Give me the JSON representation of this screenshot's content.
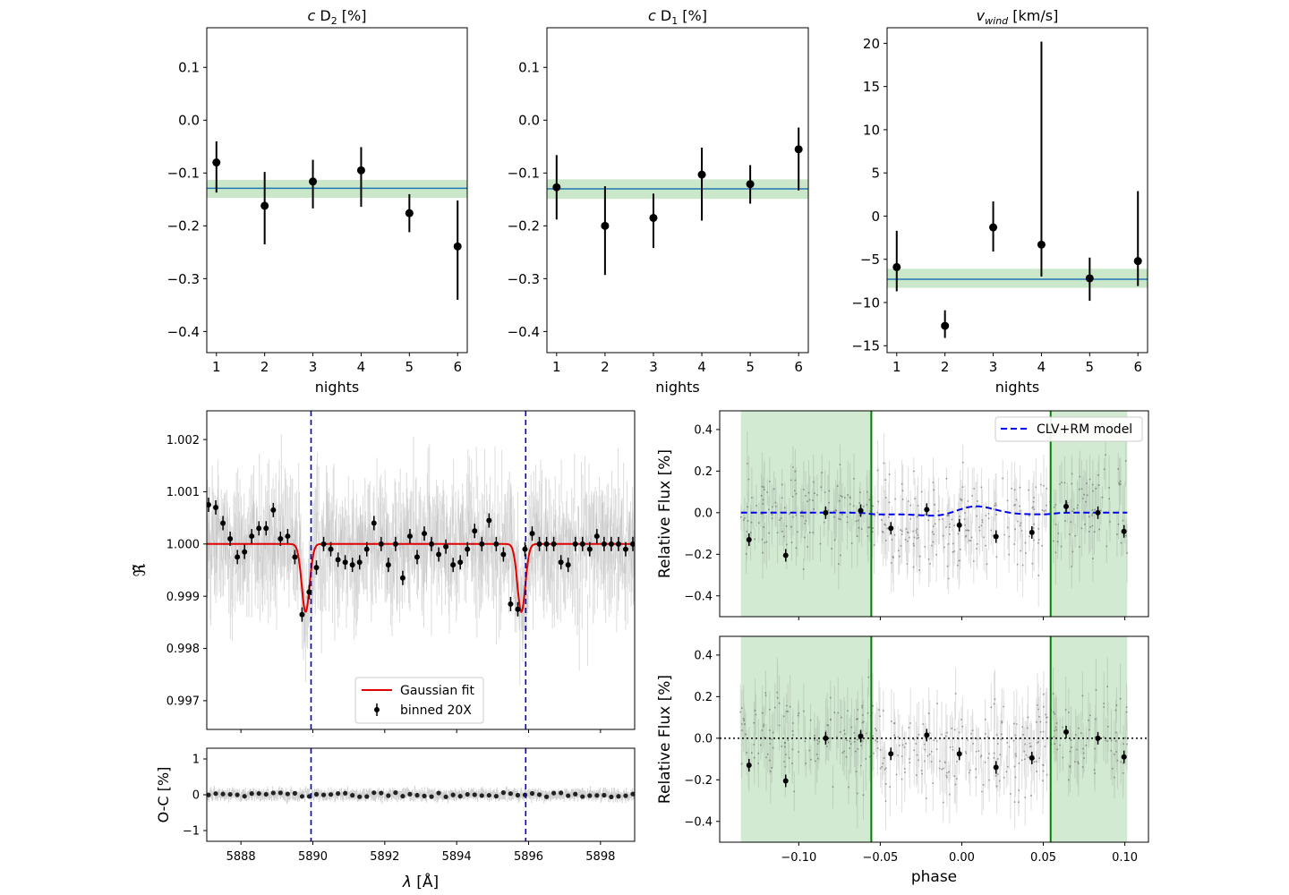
{
  "chart_data": [
    {
      "id": "cD2",
      "type": "scatter",
      "title": {
        "pre": "c",
        "main": " D",
        "sub": "2",
        "post": " [%]"
      },
      "xlabel": "nights",
      "ylabel": "",
      "xlim": [
        0.8,
        6.2
      ],
      "ylim": [
        -0.44,
        0.175
      ],
      "xticks": [
        1,
        2,
        3,
        4,
        5,
        6
      ],
      "xtick_labels": [
        "1",
        "2",
        "3",
        "4",
        "5",
        "6"
      ],
      "yticks": [
        0.1,
        0.0,
        -0.1,
        -0.2,
        -0.3,
        -0.4
      ],
      "ytick_labels": [
        "0.1",
        "0.0",
        "−0.1",
        "−0.2",
        "−0.3",
        "−0.4"
      ],
      "points": [
        {
          "x": 1,
          "y": -0.08,
          "lo": -0.137,
          "hi": -0.04
        },
        {
          "x": 2,
          "y": -0.162,
          "lo": -0.235,
          "hi": -0.098
        },
        {
          "x": 3,
          "y": -0.116,
          "lo": -0.167,
          "hi": -0.075
        },
        {
          "x": 4,
          "y": -0.095,
          "lo": -0.164,
          "hi": -0.051
        },
        {
          "x": 5,
          "y": -0.176,
          "lo": -0.212,
          "hi": -0.14
        },
        {
          "x": 6,
          "y": -0.239,
          "lo": -0.34,
          "hi": -0.152
        }
      ],
      "mean": -0.129,
      "band": [
        -0.147,
        -0.113
      ]
    },
    {
      "id": "cD1",
      "type": "scatter",
      "title": {
        "pre": "c",
        "main": " D",
        "sub": "1",
        "post": " [%]"
      },
      "xlabel": "nights",
      "ylabel": "",
      "xlim": [
        0.8,
        6.2
      ],
      "ylim": [
        -0.44,
        0.175
      ],
      "xticks": [
        1,
        2,
        3,
        4,
        5,
        6
      ],
      "xtick_labels": [
        "1",
        "2",
        "3",
        "4",
        "5",
        "6"
      ],
      "yticks": [
        0.1,
        0.0,
        -0.1,
        -0.2,
        -0.3,
        -0.4
      ],
      "ytick_labels": [
        "0.1",
        "0.0",
        "−0.1",
        "−0.2",
        "−0.3",
        "−0.4"
      ],
      "points": [
        {
          "x": 1,
          "y": -0.127,
          "lo": -0.188,
          "hi": -0.066
        },
        {
          "x": 2,
          "y": -0.2,
          "lo": -0.293,
          "hi": -0.125
        },
        {
          "x": 3,
          "y": -0.185,
          "lo": -0.242,
          "hi": -0.139
        },
        {
          "x": 4,
          "y": -0.103,
          "lo": -0.19,
          "hi": -0.052
        },
        {
          "x": 5,
          "y": -0.121,
          "lo": -0.158,
          "hi": -0.085
        },
        {
          "x": 6,
          "y": -0.055,
          "lo": -0.133,
          "hi": -0.014
        }
      ],
      "mean": -0.13,
      "band": [
        -0.149,
        -0.112
      ]
    },
    {
      "id": "vwind",
      "type": "scatter",
      "title": {
        "pre": "v",
        "main": "",
        "sub": "wind",
        "post": " [km/s]"
      },
      "xlabel": "nights",
      "ylabel": "",
      "xlim": [
        0.8,
        6.2
      ],
      "ylim": [
        -15.8,
        21.8
      ],
      "xticks": [
        1,
        2,
        3,
        4,
        5,
        6
      ],
      "xtick_labels": [
        "1",
        "2",
        "3",
        "4",
        "5",
        "6"
      ],
      "yticks": [
        20,
        15,
        10,
        5,
        0,
        -5,
        -10,
        -15
      ],
      "ytick_labels": [
        "20",
        "15",
        "10",
        "5",
        "0",
        "−5",
        "−10",
        "−15"
      ],
      "points": [
        {
          "x": 1,
          "y": -5.9,
          "lo": -8.7,
          "hi": -1.7
        },
        {
          "x": 2,
          "y": -12.7,
          "lo": -14.1,
          "hi": -10.9
        },
        {
          "x": 3,
          "y": -1.3,
          "lo": -4.1,
          "hi": 1.7
        },
        {
          "x": 4,
          "y": -3.3,
          "lo": -7.0,
          "hi": 20.2
        },
        {
          "x": 5,
          "y": -7.2,
          "lo": -9.8,
          "hi": -4.8
        },
        {
          "x": 6,
          "y": -5.2,
          "lo": -8.1,
          "hi": 2.9
        }
      ],
      "mean": -7.3,
      "band": [
        -8.3,
        -6.1
      ]
    },
    {
      "id": "spectrum",
      "type": "line",
      "title": "",
      "xlabel_sym": "λ",
      "xlabel_unit": " [Å]",
      "ylabel": "ℜ̃",
      "xlim": [
        5887.05,
        5898.95
      ],
      "ylim": [
        0.99645,
        1.00255
      ],
      "xticks": [
        5888,
        5890,
        5892,
        5894,
        5896,
        5898
      ],
      "xtick_labels": [
        "5888",
        "5890",
        "5892",
        "5894",
        "5896",
        "5898"
      ],
      "yticks": [
        1.002,
        1.001,
        1.0,
        0.999,
        0.998,
        0.997
      ],
      "ytick_labels": [
        "1.002",
        "1.001",
        "1.000",
        "0.999",
        "0.998",
        "0.997"
      ],
      "vlines": [
        5889.95,
        5895.92
      ],
      "gauss": {
        "baseline": 1.0,
        "depth": 0.0013,
        "sigma": 0.11,
        "centers": [
          5889.8,
          5895.8
        ]
      },
      "binned": [
        {
          "x": 5887.1,
          "y": 1.00075
        },
        {
          "x": 5887.3,
          "y": 1.0007
        },
        {
          "x": 5887.5,
          "y": 1.0004
        },
        {
          "x": 5887.7,
          "y": 1.0001
        },
        {
          "x": 5887.9,
          "y": 0.99975
        },
        {
          "x": 5888.1,
          "y": 0.99985
        },
        {
          "x": 5888.3,
          "y": 1.00015
        },
        {
          "x": 5888.5,
          "y": 1.0003
        },
        {
          "x": 5888.7,
          "y": 1.0003
        },
        {
          "x": 5888.9,
          "y": 1.00065
        },
        {
          "x": 5889.1,
          "y": 1.0001
        },
        {
          "x": 5889.3,
          "y": 1.00015
        },
        {
          "x": 5889.5,
          "y": 0.99975
        },
        {
          "x": 5889.7,
          "y": 0.99865
        },
        {
          "x": 5889.9,
          "y": 0.99908
        },
        {
          "x": 5890.1,
          "y": 0.99955
        },
        {
          "x": 5890.3,
          "y": 1.0
        },
        {
          "x": 5890.5,
          "y": 0.9999
        },
        {
          "x": 5890.7,
          "y": 0.9997
        },
        {
          "x": 5890.9,
          "y": 0.99965
        },
        {
          "x": 5891.1,
          "y": 0.9996
        },
        {
          "x": 5891.3,
          "y": 0.99965
        },
        {
          "x": 5891.5,
          "y": 0.9999
        },
        {
          "x": 5891.7,
          "y": 1.0004
        },
        {
          "x": 5891.9,
          "y": 1.0
        },
        {
          "x": 5892.1,
          "y": 0.9996
        },
        {
          "x": 5892.3,
          "y": 1.0
        },
        {
          "x": 5892.5,
          "y": 0.99935
        },
        {
          "x": 5892.7,
          "y": 1.00015
        },
        {
          "x": 5892.9,
          "y": 0.99975
        },
        {
          "x": 5893.1,
          "y": 1.0002
        },
        {
          "x": 5893.3,
          "y": 1.0
        },
        {
          "x": 5893.5,
          "y": 0.9998
        },
        {
          "x": 5893.7,
          "y": 0.99995
        },
        {
          "x": 5893.9,
          "y": 0.9996
        },
        {
          "x": 5894.1,
          "y": 0.99965
        },
        {
          "x": 5894.3,
          "y": 0.9999
        },
        {
          "x": 5894.5,
          "y": 1.00025
        },
        {
          "x": 5894.7,
          "y": 1.0
        },
        {
          "x": 5894.9,
          "y": 1.00045
        },
        {
          "x": 5895.1,
          "y": 1.0
        },
        {
          "x": 5895.3,
          "y": 0.9998
        },
        {
          "x": 5895.5,
          "y": 0.99885
        },
        {
          "x": 5895.7,
          "y": 0.99875
        },
        {
          "x": 5895.9,
          "y": 0.9999
        },
        {
          "x": 5896.1,
          "y": 1.0002
        },
        {
          "x": 5896.3,
          "y": 1.0
        },
        {
          "x": 5896.5,
          "y": 1.0
        },
        {
          "x": 5896.7,
          "y": 1.0
        },
        {
          "x": 5896.9,
          "y": 0.99965
        },
        {
          "x": 5897.1,
          "y": 0.9996
        },
        {
          "x": 5897.3,
          "y": 1.0
        },
        {
          "x": 5897.5,
          "y": 1.0
        },
        {
          "x": 5897.7,
          "y": 0.9999
        },
        {
          "x": 5897.9,
          "y": 1.00015
        },
        {
          "x": 5898.1,
          "y": 1.0
        },
        {
          "x": 5898.3,
          "y": 1.0
        },
        {
          "x": 5898.5,
          "y": 1.0
        },
        {
          "x": 5898.7,
          "y": 0.9999
        },
        {
          "x": 5898.9,
          "y": 1.0
        }
      ],
      "legend": {
        "location": "lower center",
        "entries": [
          "Gaussian fit",
          "binned 20X"
        ]
      }
    },
    {
      "id": "residual",
      "type": "line",
      "ylabel": "O-C [%]",
      "xlim": [
        5887.05,
        5898.95
      ],
      "ylim": [
        -1.3,
        1.3
      ],
      "yticks": [
        1,
        0,
        -1
      ],
      "ytick_labels": [
        "1",
        "0",
        "−1"
      ],
      "vlines": [
        5889.95,
        5895.92
      ],
      "level": 0.0
    },
    {
      "id": "lc_top",
      "type": "scatter",
      "ylabel": "Relative Flux [%]",
      "xlim": [
        -0.1485,
        0.1145
      ],
      "ylim": [
        -0.5,
        0.49
      ],
      "yticks": [
        0.4,
        0.2,
        0.0,
        -0.2,
        -0.4
      ],
      "ytick_labels": [
        "0.4",
        "0.2",
        "0.0",
        "−0.2",
        "−0.4"
      ],
      "shaded": [
        [
          -0.1355,
          -0.0555
        ],
        [
          0.0545,
          0.1015
        ]
      ],
      "contacts": [
        -0.0555,
        0.0545
      ],
      "points": [
        {
          "x": -0.1305,
          "y": -0.13
        },
        {
          "x": -0.108,
          "y": -0.205
        },
        {
          "x": -0.0835,
          "y": 0.0
        },
        {
          "x": -0.062,
          "y": 0.01
        },
        {
          "x": -0.0435,
          "y": -0.075
        },
        {
          "x": -0.0215,
          "y": 0.015
        },
        {
          "x": -0.0015,
          "y": -0.06
        },
        {
          "x": 0.021,
          "y": -0.115
        },
        {
          "x": 0.043,
          "y": -0.095
        },
        {
          "x": 0.064,
          "y": 0.03
        },
        {
          "x": 0.0835,
          "y": 0.0
        },
        {
          "x": 0.0995,
          "y": -0.09
        }
      ],
      "model": {
        "name": "CLV+RM model",
        "color": "#0000ee"
      },
      "legend": {
        "location": "top-right",
        "entries": [
          "CLV+RM model"
        ]
      }
    },
    {
      "id": "lc_bottom",
      "type": "scatter",
      "ylabel": "Relative Flux [%]",
      "xlabel": "phase",
      "xlim": [
        -0.1485,
        0.1145
      ],
      "ylim": [
        -0.5,
        0.49
      ],
      "xticks": [
        -0.1,
        -0.05,
        0.0,
        0.05,
        0.1
      ],
      "xtick_labels": [
        "−0.10",
        "−0.05",
        "0.00",
        "0.05",
        "0.10"
      ],
      "yticks": [
        0.4,
        0.2,
        0.0,
        -0.2,
        -0.4
      ],
      "ytick_labels": [
        "0.4",
        "0.2",
        "0.0",
        "−0.2",
        "−0.4"
      ],
      "shaded": [
        [
          -0.1355,
          -0.0555
        ],
        [
          0.0545,
          0.1015
        ]
      ],
      "contacts": [
        -0.0555,
        0.0545
      ],
      "level": 0.0,
      "points": [
        {
          "x": -0.1305,
          "y": -0.13
        },
        {
          "x": -0.108,
          "y": -0.205
        },
        {
          "x": -0.0835,
          "y": 0.0
        },
        {
          "x": -0.062,
          "y": 0.01
        },
        {
          "x": -0.0435,
          "y": -0.075
        },
        {
          "x": -0.0215,
          "y": 0.015
        },
        {
          "x": -0.0015,
          "y": -0.075
        },
        {
          "x": 0.021,
          "y": -0.14
        },
        {
          "x": 0.043,
          "y": -0.095
        },
        {
          "x": 0.064,
          "y": 0.03
        },
        {
          "x": 0.0835,
          "y": 0.0
        },
        {
          "x": 0.0995,
          "y": -0.09
        }
      ]
    }
  ]
}
